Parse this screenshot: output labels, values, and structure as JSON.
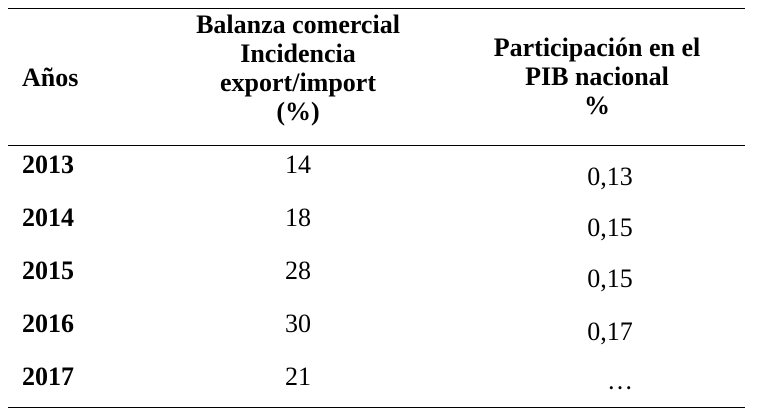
{
  "table": {
    "headers": {
      "years": "Años",
      "balance": [
        "Balanza comercial",
        "Incidencia",
        "export/import",
        "(%)"
      ],
      "pib": [
        "Participación en el",
        "PIB nacional",
        "%"
      ]
    },
    "rows": [
      {
        "year": "2013",
        "balance": "14",
        "pib": "0,13"
      },
      {
        "year": "2014",
        "balance": "18",
        "pib": "0,15"
      },
      {
        "year": "2015",
        "balance": "28",
        "pib": "0,15"
      },
      {
        "year": "2016",
        "balance": "30",
        "pib": "0,17"
      },
      {
        "year": "2017",
        "balance": "21",
        "pib": "…"
      }
    ]
  }
}
